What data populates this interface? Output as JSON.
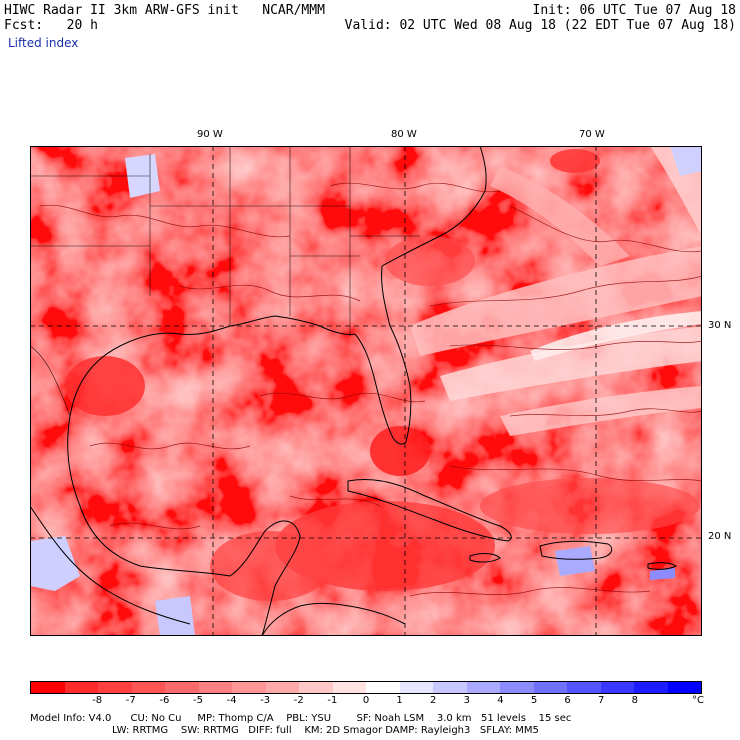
{
  "header": {
    "line1_left": "HIWC Radar II 3km ARW-GFS init   NCAR/MMM",
    "line1_right": "Init: 06 UTC Tue 07 Aug 18",
    "line2_left": "Fcst:   20 h",
    "line2_right": "Valid: 02 UTC Wed 08 Aug 18 (22 EDT Tue 07 Aug 18)",
    "field_name": "Lifted index"
  },
  "map": {
    "lon_labels": [
      "90 W",
      "80 W",
      "70 W"
    ],
    "lat_labels": [
      "30 N",
      "20 N"
    ]
  },
  "colorbar": {
    "colors": [
      "#ff0000",
      "#ff2a2a",
      "#ff4040",
      "#ff5555",
      "#ff6a6a",
      "#ff8080",
      "#ff9595",
      "#ffaaaa",
      "#ffc8c8",
      "#ffe2e2",
      "#ffffff",
      "#e6e6ff",
      "#c8c8ff",
      "#aaaaff",
      "#8c8cff",
      "#7070ff",
      "#5555ff",
      "#3838ff",
      "#1c1cff",
      "#0000ff"
    ],
    "ticks": [
      "-8",
      "-7",
      "-6",
      "-5",
      "-4",
      "-3",
      "-2",
      "-1",
      "0",
      "1",
      "2",
      "3",
      "4",
      "5",
      "6",
      "7",
      "8"
    ],
    "unit": "°C"
  },
  "footer": {
    "line1": "Model Info: V4.0      CU: No Cu     MP: Thomp C/A    PBL: YSU        SF: Noah LSM    3.0 km   51 levels    15 sec",
    "line2": "LW: RRTMG    SW: RRTMG   DIFF: full    KM: 2D Smagor DAMP: Rayleigh3   SFLAY: MM5"
  }
}
